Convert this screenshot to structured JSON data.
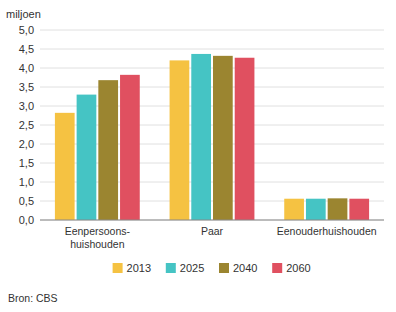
{
  "chart_data": {
    "type": "bar",
    "ylabel": "miljoen",
    "source": "Bron: CBS",
    "categories": [
      "Eenpersoons-\nhuishouden",
      "Paar",
      "Eenouderhuishouden"
    ],
    "series": [
      {
        "name": "2013",
        "color": "#F5C242",
        "values": [
          2.82,
          4.2,
          0.56
        ]
      },
      {
        "name": "2025",
        "color": "#45C4C4",
        "values": [
          3.3,
          4.37,
          0.56
        ]
      },
      {
        "name": "2040",
        "color": "#9B8530",
        "values": [
          3.68,
          4.32,
          0.57
        ]
      },
      {
        "name": "2060",
        "color": "#E05060",
        "values": [
          3.82,
          4.27,
          0.56
        ]
      }
    ],
    "ylim": [
      0,
      5.0
    ],
    "yticks": [
      {
        "value": 0.0,
        "label": "0,0"
      },
      {
        "value": 0.5,
        "label": "0,5"
      },
      {
        "value": 1.0,
        "label": "1,0"
      },
      {
        "value": 1.5,
        "label": "1,5"
      },
      {
        "value": 2.0,
        "label": "2,0"
      },
      {
        "value": 2.5,
        "label": "2,5"
      },
      {
        "value": 3.0,
        "label": "3,0"
      },
      {
        "value": 3.5,
        "label": "3,5"
      },
      {
        "value": 4.0,
        "label": "4,0"
      },
      {
        "value": 4.5,
        "label": "4,5"
      },
      {
        "value": 5.0,
        "label": "5,0"
      }
    ],
    "grid": true,
    "legend": "bottom"
  }
}
